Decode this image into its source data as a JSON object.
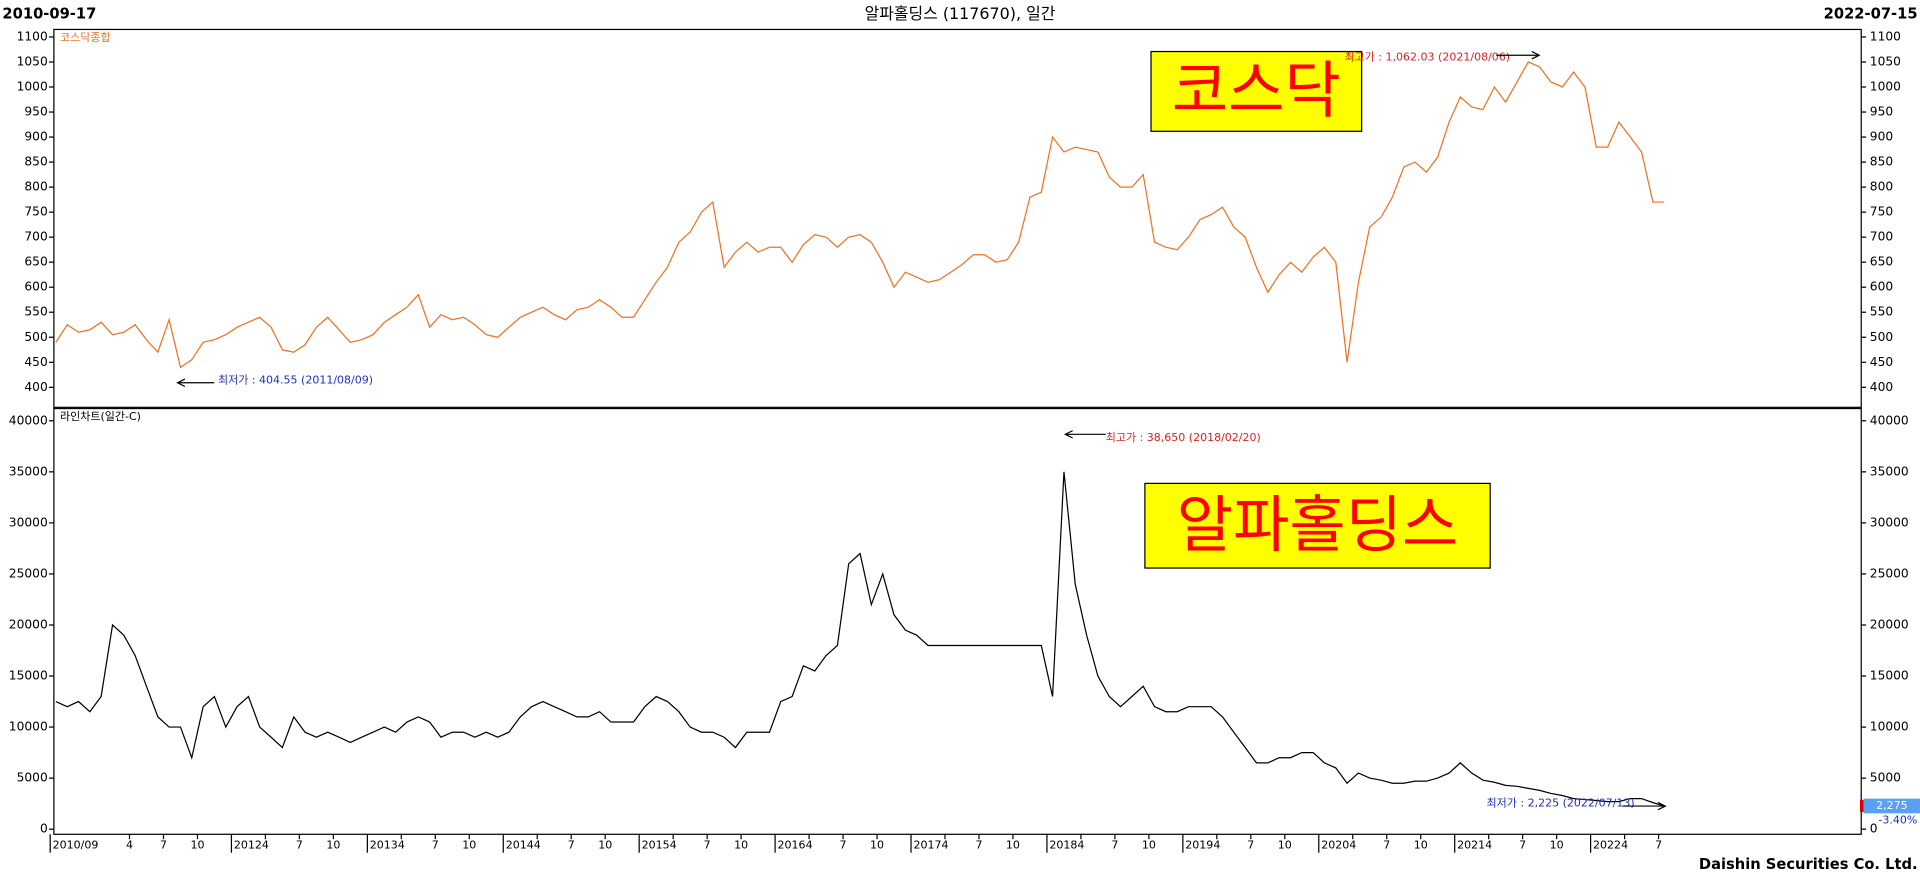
{
  "header": {
    "start_date": "2010-09-17",
    "title": "알파홀딩스 (117670), 일간",
    "end_date": "2022-07-15"
  },
  "footer": "Daishin Securities Co. Ltd.",
  "chart_data": [
    {
      "type": "line",
      "label": "코스닥",
      "series": [
        {
          "name": "코스닥종합",
          "color": "#f07020",
          "values": [
            490,
            525,
            510,
            515,
            530,
            505,
            510,
            525,
            495,
            470,
            535,
            440,
            455,
            490,
            495,
            505,
            520,
            530,
            540,
            520,
            475,
            470,
            485,
            520,
            540,
            515,
            490,
            495,
            505,
            530,
            545,
            560,
            585,
            520,
            545,
            535,
            540,
            525,
            505,
            500,
            520,
            540,
            550,
            560,
            545,
            535,
            555,
            560,
            575,
            560,
            540,
            540,
            575,
            610,
            640,
            690,
            710,
            750,
            770,
            640,
            670,
            690,
            670,
            680,
            680,
            650,
            685,
            705,
            700,
            680,
            700,
            705,
            690,
            650,
            600,
            630,
            620,
            610,
            615,
            630,
            645,
            665,
            665,
            650,
            655,
            690,
            780,
            790,
            900,
            870,
            880,
            875,
            870,
            820,
            800,
            800,
            825,
            690,
            680,
            675,
            700,
            735,
            745,
            760,
            720,
            700,
            640,
            590,
            625,
            650,
            630,
            660,
            680,
            650,
            450,
            610,
            720,
            740,
            780,
            840,
            850,
            830,
            860,
            930,
            980,
            960,
            955,
            1000,
            970,
            1010,
            1050,
            1040,
            1010,
            1000,
            1030,
            1000,
            880,
            880,
            930,
            900,
            870,
            770,
            770
          ]
        }
      ],
      "x": [
        "2010-09",
        "2010-10",
        "2010-11",
        "2010-12",
        "2011-01",
        "2011-02",
        "2011-03",
        "2011-04",
        "2011-05",
        "2011-06",
        "2011-07",
        "2011-08",
        "2011-09",
        "2011-10",
        "2011-11",
        "2011-12",
        "2012-01",
        "2012-02",
        "2012-03",
        "2012-04",
        "2012-05",
        "2012-06",
        "2012-07",
        "2012-08",
        "2012-09",
        "2012-10",
        "2012-11",
        "2012-12",
        "2013-01",
        "2013-02",
        "2013-03",
        "2013-04",
        "2013-05",
        "2013-06",
        "2013-07",
        "2013-08",
        "2013-09",
        "2013-10",
        "2013-11",
        "2013-12",
        "2014-01",
        "2014-02",
        "2014-03",
        "2014-04",
        "2014-05",
        "2014-06",
        "2014-07",
        "2014-08",
        "2014-09",
        "2014-10",
        "2014-11",
        "2014-12",
        "2015-01",
        "2015-02",
        "2015-03",
        "2015-04",
        "2015-05",
        "2015-06",
        "2015-07",
        "2015-08",
        "2015-09",
        "2015-10",
        "2015-11",
        "2015-12",
        "2016-01",
        "2016-02",
        "2016-03",
        "2016-04",
        "2016-05",
        "2016-06",
        "2016-07",
        "2016-08",
        "2016-09",
        "2016-10",
        "2016-11",
        "2016-12",
        "2017-01",
        "2017-02",
        "2017-03",
        "2017-04",
        "2017-05",
        "2017-06",
        "2017-07",
        "2017-08",
        "2017-09",
        "2017-10",
        "2017-11",
        "2017-12",
        "2018-01",
        "2018-02",
        "2018-03",
        "2018-04",
        "2018-05",
        "2018-06",
        "2018-07",
        "2018-08",
        "2018-09",
        "2018-10",
        "2018-11",
        "2018-12",
        "2019-01",
        "2019-02",
        "2019-03",
        "2019-04",
        "2019-05",
        "2019-06",
        "2019-07",
        "2019-08",
        "2019-09",
        "2019-10",
        "2019-11",
        "2019-12",
        "2020-01",
        "2020-02",
        "2020-03",
        "2020-04",
        "2020-05",
        "2020-06",
        "2020-07",
        "2020-08",
        "2020-09",
        "2020-10",
        "2020-11",
        "2020-12",
        "2021-01",
        "2021-02",
        "2021-03",
        "2021-04",
        "2021-05",
        "2021-06",
        "2021-07",
        "2021-08",
        "2021-09",
        "2021-10",
        "2021-11",
        "2021-12",
        "2022-01",
        "2022-02",
        "2022-03",
        "2022-04",
        "2022-05",
        "2022-06",
        "2022-07"
      ],
      "ylim": [
        360,
        1115
      ],
      "yticks": [
        400,
        450,
        500,
        550,
        600,
        650,
        700,
        750,
        800,
        850,
        900,
        950,
        1000,
        1050,
        1100
      ],
      "annotations": [
        {
          "text": "최고가 : 1,062.03 (2021/08/06)",
          "color": "#e02020"
        },
        {
          "text": "최저가 : 404.55 (2011/08/09)",
          "color": "#2030c0"
        }
      ]
    },
    {
      "type": "line",
      "label": "알파홀딩스",
      "series": [
        {
          "name": "라인차트(일간-C)",
          "color": "#000000",
          "values": [
            12500,
            12000,
            12500,
            11500,
            13000,
            20000,
            19000,
            17000,
            14000,
            11000,
            10000,
            10000,
            7000,
            12000,
            13000,
            10000,
            12000,
            13000,
            10000,
            9000,
            8000,
            11000,
            9500,
            9000,
            9500,
            9000,
            8500,
            9000,
            9500,
            10000,
            9500,
            10500,
            11000,
            10500,
            9000,
            9500,
            9500,
            9000,
            9500,
            9000,
            9500,
            11000,
            12000,
            12500,
            12000,
            11500,
            11000,
            11000,
            11500,
            10500,
            10500,
            10500,
            12000,
            13000,
            12500,
            11500,
            10000,
            9500,
            9500,
            9000,
            8000,
            9500,
            9500,
            9500,
            12500,
            13000,
            16000,
            15500,
            17000,
            18000,
            26000,
            27000,
            22000,
            25000,
            21000,
            19500,
            19000,
            18000,
            18000,
            18000,
            18000,
            18000,
            18000,
            18000,
            18000,
            18000,
            18000,
            18000,
            13000,
            35000,
            24000,
            19000,
            15000,
            13000,
            12000,
            13000,
            14000,
            12000,
            11500,
            11500,
            12000,
            12000,
            12000,
            11000,
            9500,
            8000,
            6500,
            6500,
            7000,
            7000,
            7500,
            7500,
            6500,
            6000,
            4500,
            5500,
            5000,
            4800,
            4500,
            4500,
            4700,
            4700,
            5000,
            5500,
            6500,
            5500,
            4800,
            4600,
            4300,
            4200,
            4000,
            3800,
            3500,
            3300,
            3000,
            2900,
            2800,
            2700,
            2700,
            3000,
            3000,
            2600,
            2275
          ]
        }
      ],
      "x": [
        "2010-09",
        "2010-10",
        "2010-11",
        "2010-12",
        "2011-01",
        "2011-02",
        "2011-03",
        "2011-04",
        "2011-05",
        "2011-06",
        "2011-07",
        "2011-08",
        "2011-09",
        "2011-10",
        "2011-11",
        "2011-12",
        "2012-01",
        "2012-02",
        "2012-03",
        "2012-04",
        "2012-05",
        "2012-06",
        "2012-07",
        "2012-08",
        "2012-09",
        "2012-10",
        "2012-11",
        "2012-12",
        "2013-01",
        "2013-02",
        "2013-03",
        "2013-04",
        "2013-05",
        "2013-06",
        "2013-07",
        "2013-08",
        "2013-09",
        "2013-10",
        "2013-11",
        "2013-12",
        "2014-01",
        "2014-02",
        "2014-03",
        "2014-04",
        "2014-05",
        "2014-06",
        "2014-07",
        "2014-08",
        "2014-09",
        "2014-10",
        "2014-11",
        "2014-12",
        "2015-01",
        "2015-02",
        "2015-03",
        "2015-04",
        "2015-05",
        "2015-06",
        "2015-07",
        "2015-08",
        "2015-09",
        "2015-10",
        "2015-11",
        "2015-12",
        "2016-01",
        "2016-02",
        "2016-03",
        "2016-04",
        "2016-05",
        "2016-06",
        "2016-07",
        "2016-08",
        "2016-09",
        "2016-10",
        "2016-11",
        "2016-12",
        "2017-01",
        "2017-02",
        "2017-03",
        "2017-04",
        "2017-05",
        "2017-06",
        "2017-07",
        "2017-08",
        "2017-09",
        "2017-10",
        "2017-11",
        "2017-12",
        "2018-01",
        "2018-02",
        "2018-03",
        "2018-04",
        "2018-05",
        "2018-06",
        "2018-07",
        "2018-08",
        "2018-09",
        "2018-10",
        "2018-11",
        "2018-12",
        "2019-01",
        "2019-02",
        "2019-03",
        "2019-04",
        "2019-05",
        "2019-06",
        "2019-07",
        "2019-08",
        "2019-09",
        "2019-10",
        "2019-11",
        "2019-12",
        "2020-01",
        "2020-02",
        "2020-03",
        "2020-04",
        "2020-05",
        "2020-06",
        "2020-07",
        "2020-08",
        "2020-09",
        "2020-10",
        "2020-11",
        "2020-12",
        "2021-01",
        "2021-02",
        "2021-03",
        "2021-04",
        "2021-05",
        "2021-06",
        "2021-07",
        "2021-08",
        "2021-09",
        "2021-10",
        "2021-11",
        "2021-12",
        "2022-01",
        "2022-02",
        "2022-03",
        "2022-04",
        "2022-05",
        "2022-06",
        "2022-07"
      ],
      "ylim": [
        -500,
        41200
      ],
      "yticks": [
        0,
        5000,
        10000,
        15000,
        20000,
        25000,
        30000,
        35000,
        40000
      ],
      "xticks": [
        {
          "value": "2010-09",
          "label": "2010/09"
        },
        {
          "value": "2011-04",
          "label": "4"
        },
        {
          "value": "2011-07",
          "label": "7"
        },
        {
          "value": "2011-10",
          "label": "10"
        },
        {
          "value": "2012-01",
          "label": "2012"
        },
        {
          "value": "2012-04",
          "label": "4"
        },
        {
          "value": "2012-07",
          "label": "7"
        },
        {
          "value": "2012-10",
          "label": "10"
        },
        {
          "value": "2013-01",
          "label": "2013"
        },
        {
          "value": "2013-04",
          "label": "4"
        },
        {
          "value": "2013-07",
          "label": "7"
        },
        {
          "value": "2013-10",
          "label": "10"
        },
        {
          "value": "2014-01",
          "label": "2014"
        },
        {
          "value": "2014-04",
          "label": "4"
        },
        {
          "value": "2014-07",
          "label": "7"
        },
        {
          "value": "2014-10",
          "label": "10"
        },
        {
          "value": "2015-01",
          "label": "2015"
        },
        {
          "value": "2015-04",
          "label": "4"
        },
        {
          "value": "2015-07",
          "label": "7"
        },
        {
          "value": "2015-10",
          "label": "10"
        },
        {
          "value": "2016-01",
          "label": "2016"
        },
        {
          "value": "2016-04",
          "label": "4"
        },
        {
          "value": "2016-07",
          "label": "7"
        },
        {
          "value": "2016-10",
          "label": "10"
        },
        {
          "value": "2017-01",
          "label": "2017"
        },
        {
          "value": "2017-04",
          "label": "4"
        },
        {
          "value": "2017-07",
          "label": "7"
        },
        {
          "value": "2017-10",
          "label": "10"
        },
        {
          "value": "2018-01",
          "label": "2018"
        },
        {
          "value": "2018-04",
          "label": "4"
        },
        {
          "value": "2018-07",
          "label": "7"
        },
        {
          "value": "2018-10",
          "label": "10"
        },
        {
          "value": "2019-01",
          "label": "2019"
        },
        {
          "value": "2019-04",
          "label": "4"
        },
        {
          "value": "2019-07",
          "label": "7"
        },
        {
          "value": "2019-10",
          "label": "10"
        },
        {
          "value": "2020-01",
          "label": "2020"
        },
        {
          "value": "2020-04",
          "label": "4"
        },
        {
          "value": "2020-07",
          "label": "7"
        },
        {
          "value": "2020-10",
          "label": "10"
        },
        {
          "value": "2021-01",
          "label": "2021"
        },
        {
          "value": "2021-04",
          "label": "4"
        },
        {
          "value": "2021-07",
          "label": "7"
        },
        {
          "value": "2021-10",
          "label": "10"
        },
        {
          "value": "2022-01",
          "label": "2022"
        },
        {
          "value": "2022-04",
          "label": "4"
        },
        {
          "value": "2022-07",
          "label": "7"
        }
      ],
      "annotations": [
        {
          "text": "최고가 : 38,650 (2018/02/20)",
          "color": "#e02020"
        },
        {
          "text": "최저가 : 2,225 (2022/07/13)",
          "color": "#2030c0"
        }
      ],
      "last_value": {
        "value": 2275,
        "label": "2,275"
      },
      "change": {
        "value": -3.4,
        "label": "-3.40%"
      }
    }
  ]
}
